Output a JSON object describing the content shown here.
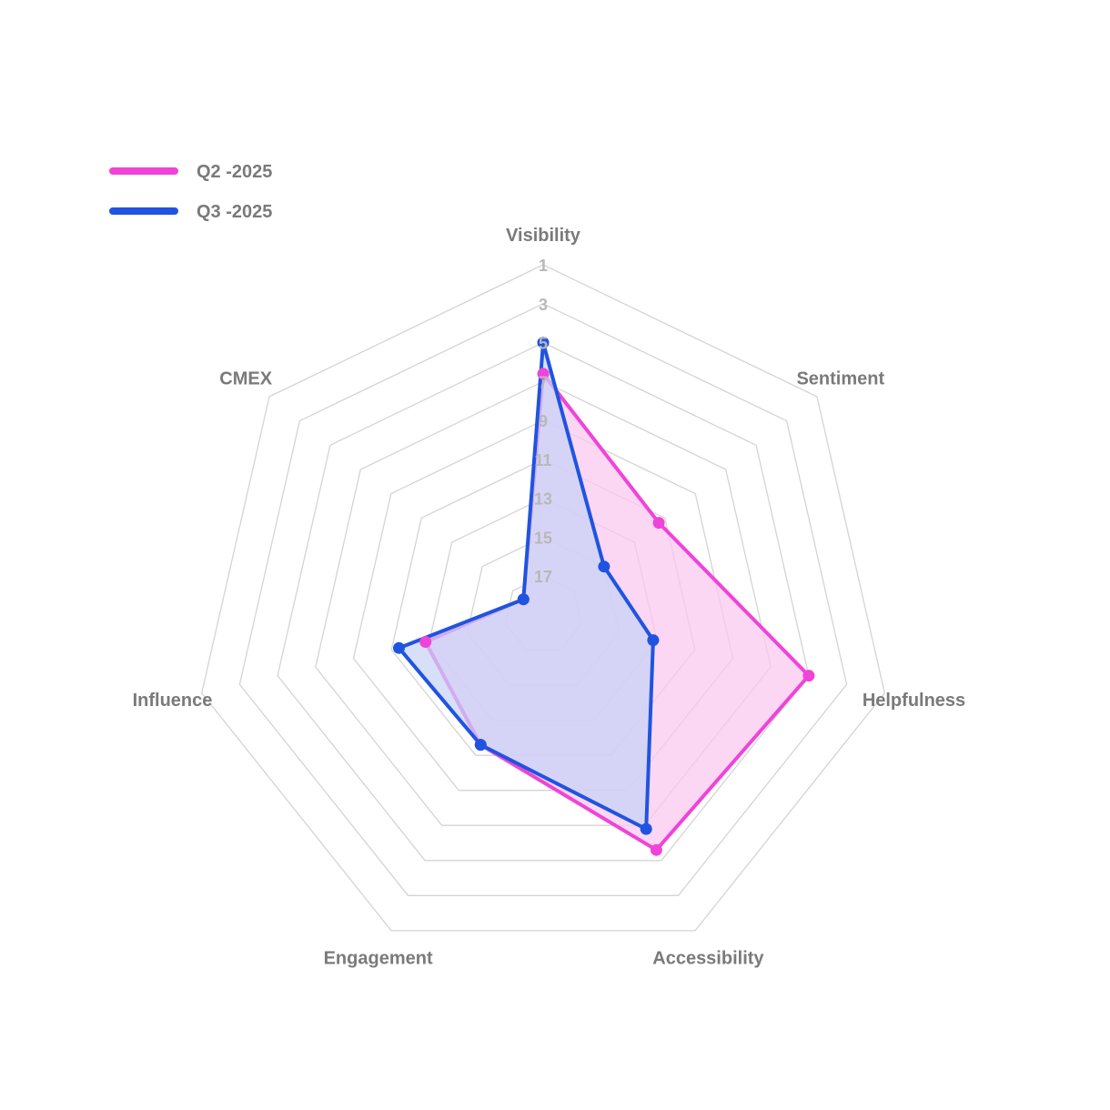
{
  "chart_data": {
    "type": "radar",
    "title": "",
    "axes": [
      "Visibility",
      "Sentiment",
      "Helpfulness",
      "Accessibility",
      "Engagement",
      "Influence",
      "CMEX"
    ],
    "scale": {
      "ticks": [
        1,
        3,
        5,
        7,
        9,
        11,
        13,
        15,
        17
      ],
      "outer": 1,
      "center": 19,
      "reversed": true
    },
    "grid": true,
    "legend_position": "top-left",
    "series": [
      {
        "name": "Q2 -2025",
        "color": "#ef44d8",
        "fill": "#f9c8f0",
        "values": [
          6.6,
          11.4,
          5.0,
          5.6,
          11.6,
          12.8,
          17.7
        ]
      },
      {
        "name": "Q3 -2025",
        "color": "#1f54e0",
        "fill": "#c7d3f6",
        "values": [
          5.0,
          15.0,
          13.2,
          6.8,
          11.6,
          11.4,
          17.7
        ]
      }
    ]
  }
}
